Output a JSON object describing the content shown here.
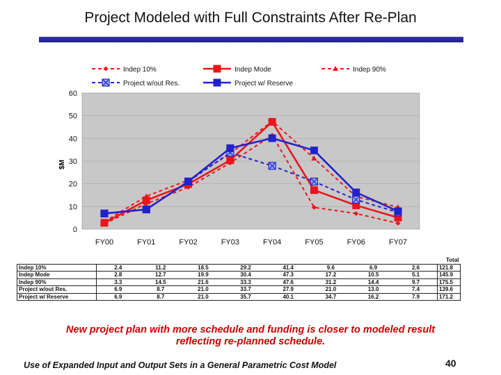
{
  "slide": {
    "title": "Project Modeled with Full Constraints After Re-Plan",
    "caption_line1": "New project plan with more schedule and funding is closer to modeled result",
    "caption_line2": "reflecting re-planned schedule.",
    "footer": "Use of Expanded Input and Output Sets in a General Parametric Cost Model",
    "page_number": "40"
  },
  "colors": {
    "red": "#e8161b",
    "blue": "#2222cc",
    "plot_bg": "#c8c8c8",
    "title_bar": "#22228c"
  },
  "chart_data": {
    "type": "line",
    "title": "",
    "xlabel": "",
    "ylabel": "$M",
    "ylim": [
      0,
      60
    ],
    "yticks": [
      "0",
      "10",
      "20",
      "30",
      "40",
      "50",
      "60"
    ],
    "categories": [
      "FY00",
      "FY01",
      "FY02",
      "FY03",
      "FY04",
      "FY05",
      "FY06",
      "FY07"
    ],
    "total_label": "Total",
    "series": [
      {
        "name": "Indep 10%",
        "table_label": "Indep 10%",
        "color": "red",
        "style": "dashed",
        "marker": "diamond",
        "values": [
          2.4,
          11.2,
          18.5,
          29.2,
          41.4,
          9.6,
          6.9,
          2.6
        ],
        "display": [
          "2.4",
          "11.2",
          "18.5",
          "29.2",
          "41.4",
          "9.6",
          "6.9",
          "2.6"
        ],
        "total": "121.8"
      },
      {
        "name": "Indep Mode",
        "table_label": "Indep Mode",
        "color": "red",
        "style": "solid",
        "marker": "square",
        "values": [
          2.8,
          12.7,
          19.9,
          30.4,
          47.3,
          17.2,
          10.5,
          5.1
        ],
        "display": [
          "2.8",
          "12.7",
          "19.9",
          "30.4",
          "47.3",
          "17.2",
          "10.5",
          "5.1"
        ],
        "total": "145.9"
      },
      {
        "name": "Indep 90%",
        "table_label": "Indep 90%",
        "color": "red",
        "style": "dashed",
        "marker": "triangle",
        "values": [
          3.3,
          14.5,
          21.6,
          33.3,
          47.6,
          31.2,
          14.4,
          9.7
        ],
        "display": [
          "3.3",
          "14.5",
          "21.6",
          "33.3",
          "47.6",
          "31.2",
          "14.4",
          "9.7"
        ],
        "total": "175.5"
      },
      {
        "name": "Project w/out Res.",
        "table_label": "Project w/out Res.",
        "color": "blue",
        "style": "dashed",
        "marker": "xsquare",
        "values": [
          6.9,
          8.7,
          21.0,
          33.7,
          27.9,
          21.0,
          13.0,
          7.4
        ],
        "display": [
          "6.9",
          "8.7",
          "21.0",
          "33.7",
          "27.9",
          "21.0",
          "13.0",
          "7.4"
        ],
        "total": "139.6"
      },
      {
        "name": "Project w/ Reserve",
        "table_label": "Project w/ Reserve",
        "color": "blue",
        "style": "solid",
        "marker": "square",
        "values": [
          6.9,
          8.7,
          21.0,
          35.7,
          40.1,
          34.7,
          16.2,
          7.9
        ],
        "display": [
          "6.9",
          "8.7",
          "21.0",
          "35.7",
          "40.1",
          "34.7",
          "16.2",
          "7.9"
        ],
        "total": "171.2"
      }
    ]
  }
}
